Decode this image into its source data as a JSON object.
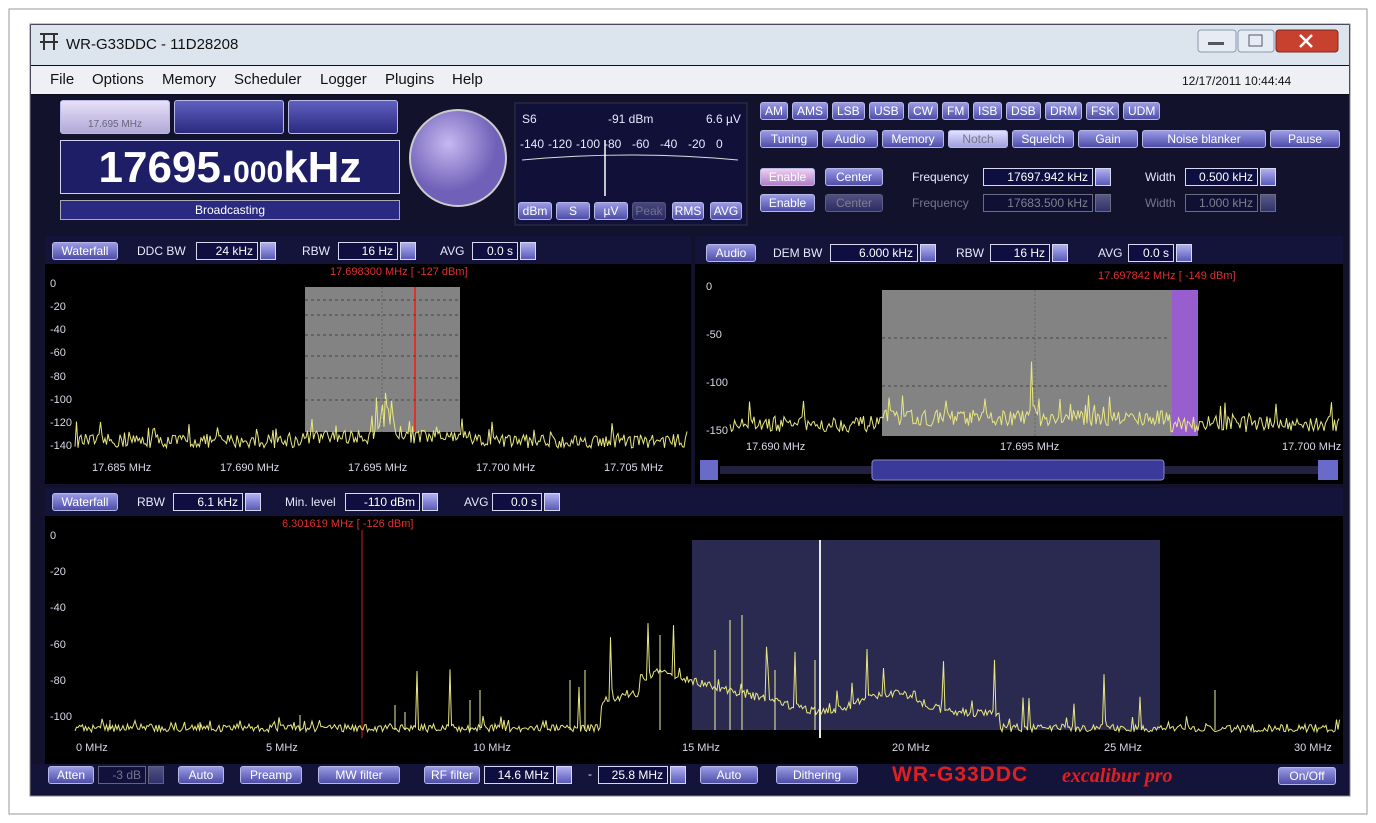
{
  "window": {
    "title": "WR-G33DDC - 11D28208"
  },
  "menu": [
    "File",
    "Options",
    "Memory",
    "Scheduler",
    "Logger",
    "Plugins",
    "Help"
  ],
  "datetime": "12/17/2011 10:44:44",
  "tuning": {
    "memory": [
      "17.695 MHz"
    ],
    "frequency_main": "17695.",
    "frequency_fraction": "000",
    "frequency_unit": "kHz",
    "station": "Broadcasting"
  },
  "smeter": {
    "s_value": "S6",
    "level": "-91 dBm",
    "voltage": "6.6 µV",
    "scale": [
      "-140",
      "-120",
      "-100",
      "-80",
      "-60",
      "-40",
      "-20",
      "0"
    ],
    "units": [
      "dBm",
      "S",
      "µV",
      "Peak",
      "RMS",
      "AVG"
    ]
  },
  "modes": [
    "AM",
    "AMS",
    "LSB",
    "USB",
    "CW",
    "FM",
    "ISB",
    "DSB",
    "DRM",
    "FSK",
    "UDM"
  ],
  "tabs": [
    "Tuning",
    "Audio",
    "Memory",
    "Notch",
    "Squelch",
    "Gain",
    "Noise blanker",
    "Pause"
  ],
  "notch": {
    "rows": [
      {
        "enable": "Enable",
        "center": "Center",
        "frequency_label": "Frequency",
        "frequency": "17697.942 kHz",
        "width_label": "Width",
        "width": "0.500 kHz"
      },
      {
        "enable": "Enable",
        "center": "Center",
        "frequency_label": "Frequency",
        "frequency": "17683.500 kHz",
        "width_label": "Width",
        "width": "1.000 kHz"
      }
    ]
  },
  "ddc_spectrum": {
    "mode": "Waterfall",
    "bw_label": "DDC BW",
    "bw": "24 kHz",
    "rbw_label": "RBW",
    "rbw": "16 Hz",
    "avg_label": "AVG",
    "avg": "0.0 s",
    "marker": "17.698300 MHz [ -127 dBm]",
    "y_labels": [
      "0",
      "-20",
      "-40",
      "-60",
      "-80",
      "-100",
      "-120",
      "-140"
    ],
    "x_labels": [
      "17.685 MHz",
      "17.690 MHz",
      "17.695 MHz",
      "17.700 MHz",
      "17.705 MHz"
    ]
  },
  "audio_spectrum": {
    "mode": "Audio",
    "bw_label": "DEM BW",
    "bw": "6.000 kHz",
    "rbw_label": "RBW",
    "rbw": "16 Hz",
    "avg_label": "AVG",
    "avg": "0.0 s",
    "marker": "17.697842 MHz [ -149 dBm]",
    "y_labels": [
      "0",
      "-50",
      "-100",
      "-150"
    ],
    "x_labels": [
      "17.690 MHz",
      "17.695 MHz",
      "17.700 MHz"
    ]
  },
  "input_spectrum": {
    "mode": "Waterfall",
    "rbw_label": "RBW",
    "rbw": "6.1 kHz",
    "min_level_label": "Min. level",
    "min_level": "-110 dBm",
    "avg_label": "AVG",
    "avg": "0.0 s",
    "marker": "6.301619 MHz [ -126 dBm]",
    "y_labels": [
      "0",
      "-20",
      "-40",
      "-60",
      "-80",
      "-100"
    ],
    "x_labels": [
      "0 MHz",
      "5 MHz",
      "10 MHz",
      "15 MHz",
      "20 MHz",
      "25 MHz",
      "30 MHz"
    ]
  },
  "bottom": {
    "atten": "Atten",
    "atten_value": "-3 dB",
    "atten_auto": "Auto",
    "preamp": "Preamp",
    "mw_filter": "MW filter",
    "rf_filter": "RF filter",
    "rf_low": "14.6 MHz",
    "separator": "-",
    "rf_high": "25.8 MHz",
    "rf_auto": "Auto",
    "dithering": "Dithering",
    "brand": "WR-G33DDC",
    "edition": "excalibur pro",
    "power": "On/Off"
  }
}
